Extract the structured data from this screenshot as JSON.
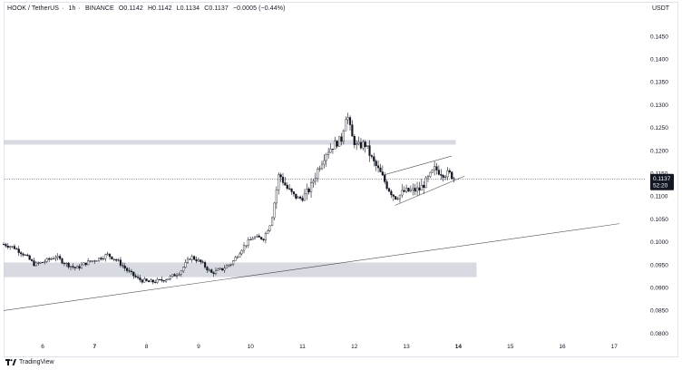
{
  "header": {
    "symbol": "HOOK / TetherUS",
    "interval": "1h",
    "exchange": "BINANCE",
    "open": "O0.1142",
    "high": "H0.1142",
    "low": "L0.1134",
    "close": "C0.1137",
    "change": "−0.0005 (−0.44%)",
    "currency": "USDT"
  },
  "footer": {
    "brand": "TradingView"
  },
  "last_price": {
    "value": "0.1137",
    "countdown": "52:20",
    "color": "#131722"
  },
  "colors": {
    "up": "#ffffff",
    "down": "#131722",
    "wick": "#131722",
    "zone": "#d1d4dc",
    "trend": "#9598a1"
  },
  "chart_data": {
    "type": "candlestick",
    "x_ticks": [
      "6",
      "7",
      "8",
      "9",
      "10",
      "11",
      "12",
      "13",
      "14",
      "15",
      "16",
      "17"
    ],
    "y_ticks": [
      "0.1450",
      "0.1400",
      "0.1350",
      "0.1300",
      "0.1250",
      "0.1200",
      "0.1150",
      "0.1100",
      "0.1050",
      "0.1000",
      "0.0950",
      "0.0900",
      "0.0850",
      "0.0800"
    ],
    "x_range_days": [
      5.25,
      17.3
    ],
    "ylim": [
      0.078,
      0.148
    ],
    "last_price": 0.1137,
    "zones": [
      {
        "x0": 5.25,
        "x1": 13.95,
        "y0": 0.1213,
        "y1": 0.1223
      },
      {
        "x0": 5.25,
        "x1": 14.35,
        "y0": 0.0923,
        "y1": 0.0955
      }
    ],
    "trendlines": [
      {
        "x0": 5.25,
        "y0": 0.085,
        "x1": 17.1,
        "y1": 0.104
      },
      {
        "x0": 12.55,
        "y0": 0.1146,
        "x1": 13.87,
        "y1": 0.1188
      },
      {
        "x0": 12.78,
        "y0": 0.108,
        "x1": 14.12,
        "y1": 0.1144
      }
    ],
    "price_points": [
      [
        5.25,
        0.0995
      ],
      [
        5.45,
        0.0988
      ],
      [
        5.65,
        0.0972
      ],
      [
        5.85,
        0.095
      ],
      [
        6.05,
        0.0958
      ],
      [
        6.25,
        0.0968
      ],
      [
        6.45,
        0.0952
      ],
      [
        6.65,
        0.0942
      ],
      [
        6.85,
        0.0955
      ],
      [
        7.05,
        0.0962
      ],
      [
        7.25,
        0.0972
      ],
      [
        7.45,
        0.0958
      ],
      [
        7.65,
        0.0935
      ],
      [
        7.85,
        0.0918
      ],
      [
        8.05,
        0.0912
      ],
      [
        8.25,
        0.0915
      ],
      [
        8.45,
        0.0922
      ],
      [
        8.65,
        0.0935
      ],
      [
        8.85,
        0.0968
      ],
      [
        9.05,
        0.0955
      ],
      [
        9.25,
        0.0932
      ],
      [
        9.45,
        0.094
      ],
      [
        9.65,
        0.0955
      ],
      [
        9.85,
        0.0988
      ],
      [
        10.05,
        0.101
      ],
      [
        10.25,
        0.1008
      ],
      [
        10.4,
        0.1045
      ],
      [
        10.55,
        0.115
      ],
      [
        10.7,
        0.1118
      ],
      [
        10.85,
        0.1098
      ],
      [
        11.0,
        0.1095
      ],
      [
        11.15,
        0.1118
      ],
      [
        11.3,
        0.116
      ],
      [
        11.45,
        0.1195
      ],
      [
        11.6,
        0.1212
      ],
      [
        11.75,
        0.1225
      ],
      [
        11.85,
        0.1285
      ],
      [
        11.95,
        0.123
      ],
      [
        12.05,
        0.1208
      ],
      [
        12.2,
        0.1215
      ],
      [
        12.35,
        0.1178
      ],
      [
        12.5,
        0.115
      ],
      [
        12.65,
        0.1118
      ],
      [
        12.8,
        0.1095
      ],
      [
        12.95,
        0.111
      ],
      [
        13.1,
        0.1112
      ],
      [
        13.25,
        0.1115
      ],
      [
        13.4,
        0.1135
      ],
      [
        13.55,
        0.116
      ],
      [
        13.7,
        0.115
      ],
      [
        13.85,
        0.1148
      ],
      [
        13.95,
        0.1137
      ]
    ]
  }
}
